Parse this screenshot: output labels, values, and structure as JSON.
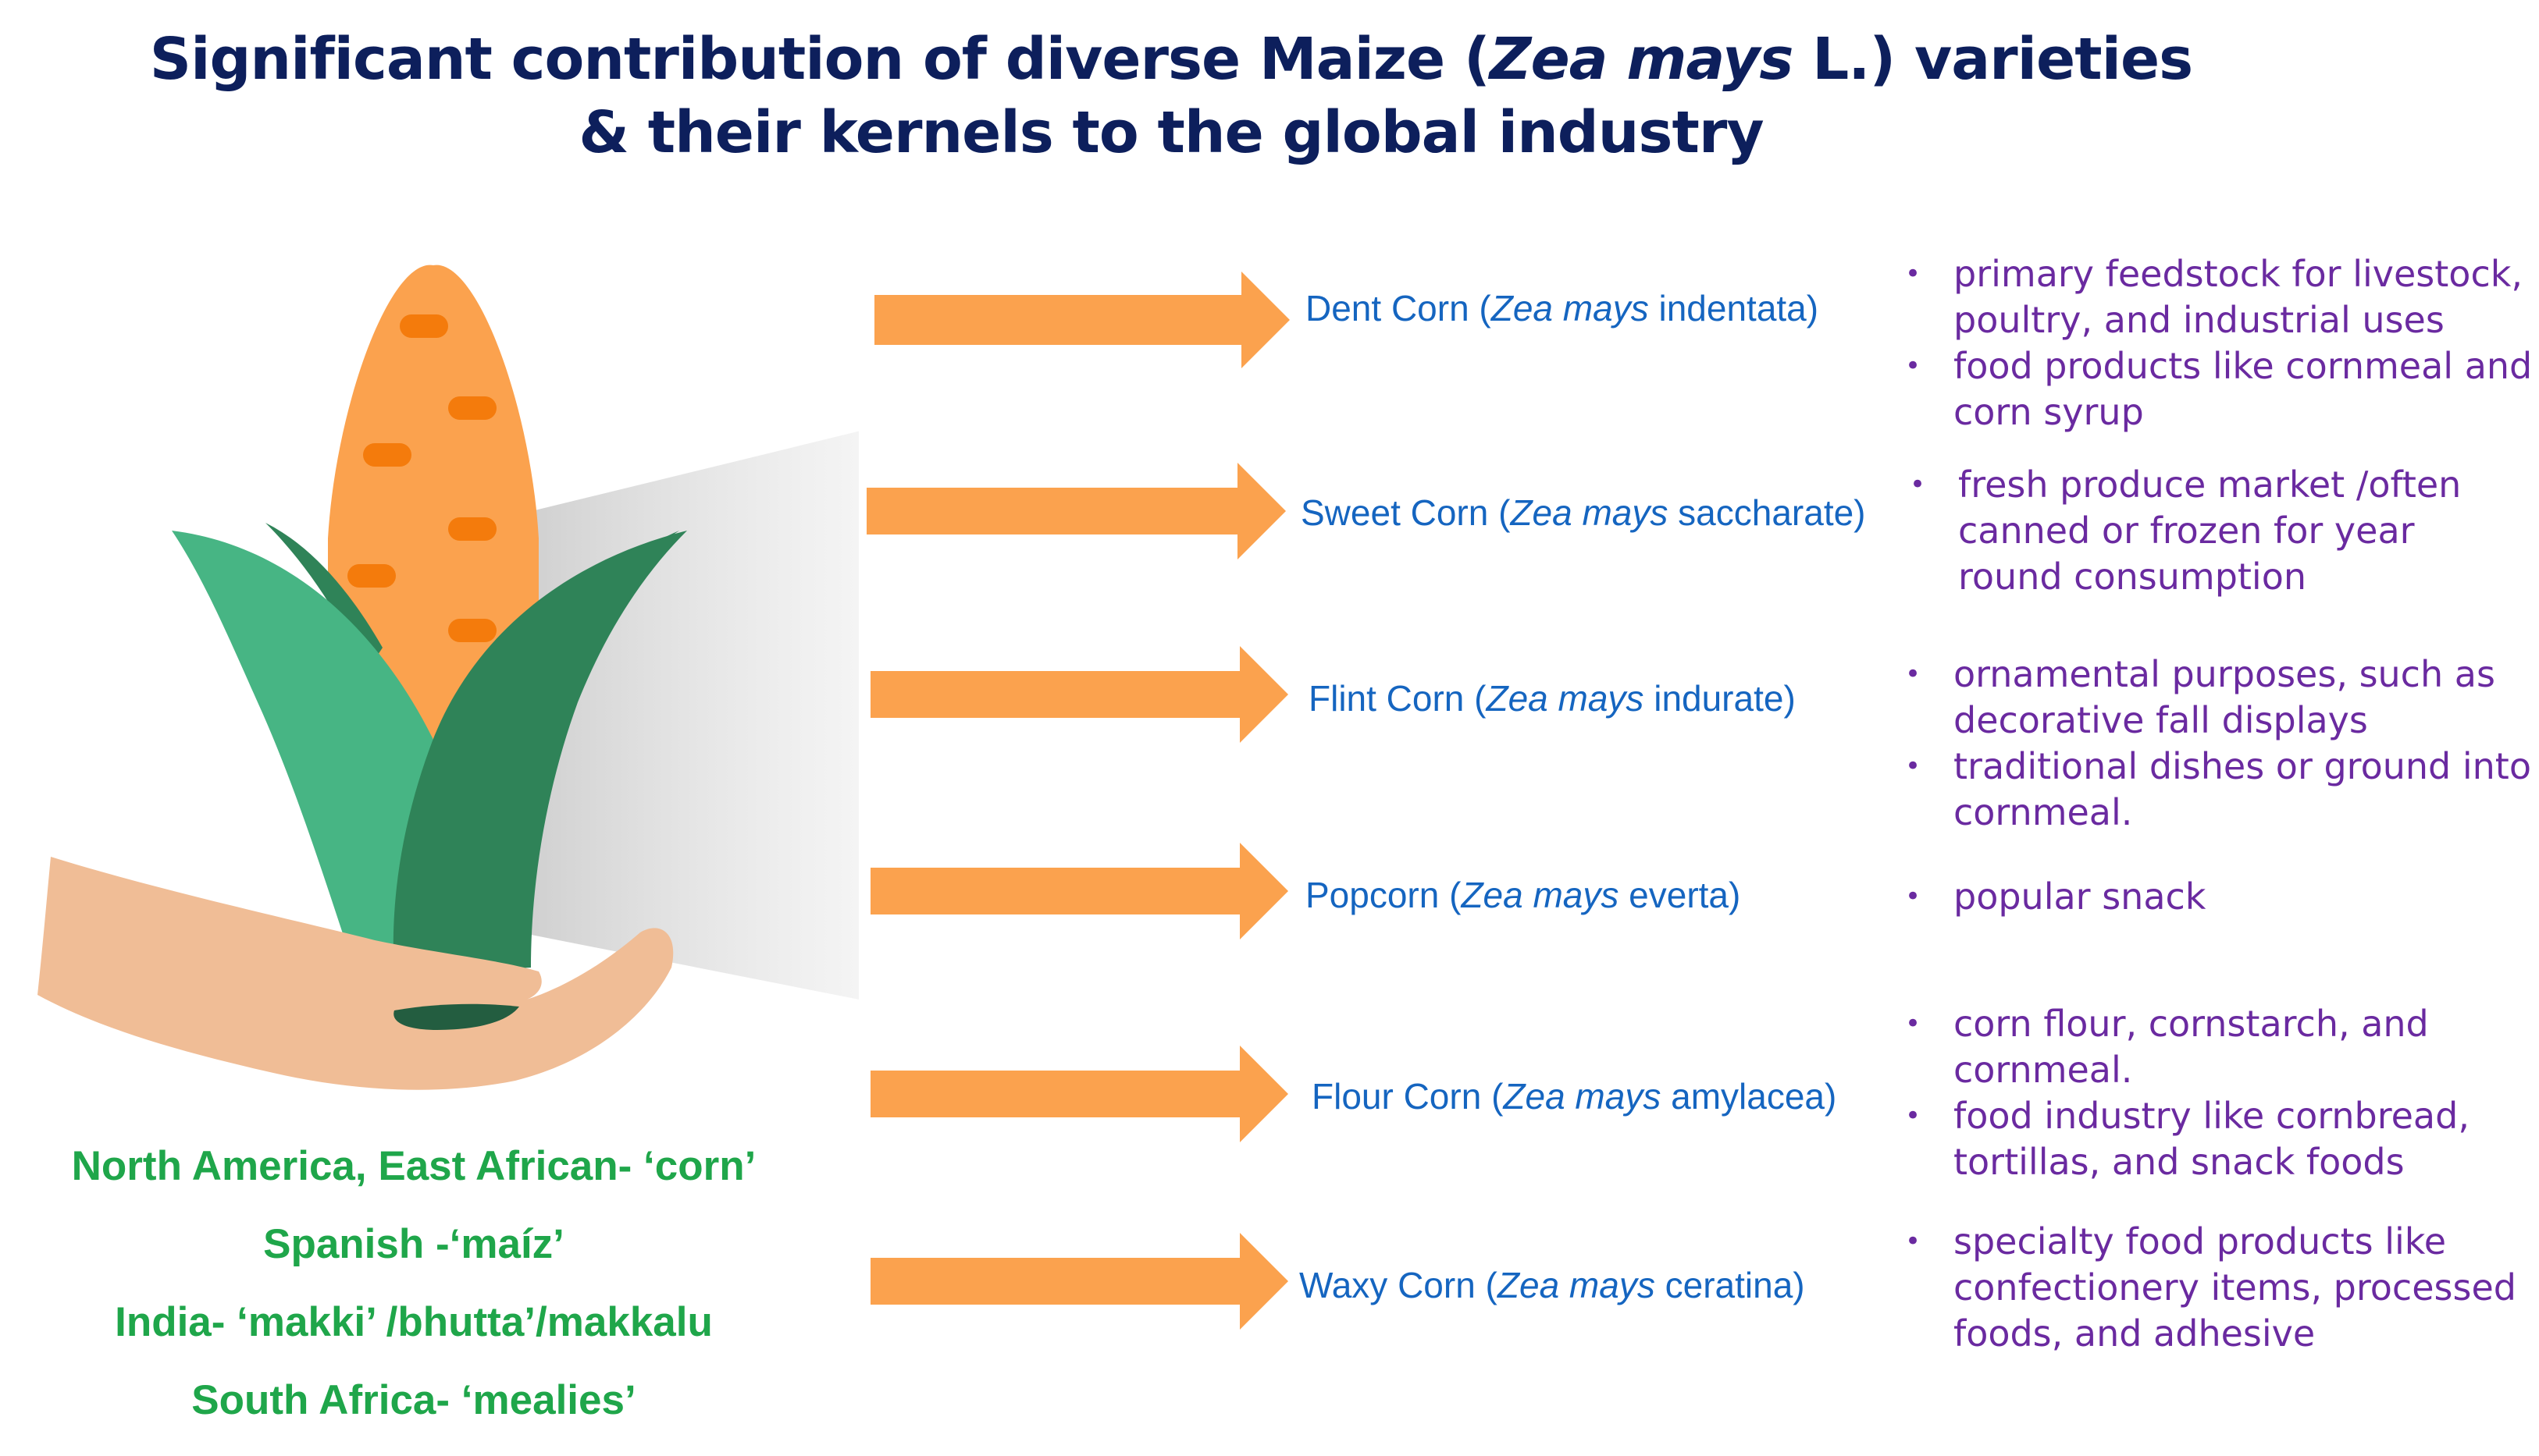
{
  "title": {
    "line1_before": "Significant contribution of diverse Maize (",
    "line1_italic": "Zea mays",
    "line1_after": " L.) varieties",
    "line2": "& their kernels to the global industry"
  },
  "colors": {
    "title": "#0d1f5c",
    "variety_text": "#1565c0",
    "uses_text": "#6a2aa0",
    "names_text": "#1fa64a",
    "arrow": "#fba24e",
    "cob": "#fba24e",
    "kernel": "#f47b0c",
    "husk_light": "#47b584",
    "husk_dark": "#2f8358",
    "hand": "#f0bd96"
  },
  "varieties": [
    {
      "prefix": "Dent Corn (",
      "italic": "Zea mays",
      "suffix": " indentata)",
      "uses": [
        "primary feedstock for livestock, poultry, and industrial uses",
        "food products like cornmeal and corn syrup"
      ]
    },
    {
      "prefix": "Sweet Corn (",
      "italic": "Zea mays",
      "suffix": " saccharate)",
      "uses": [
        "fresh produce market /often canned or frozen for year round consumption"
      ]
    },
    {
      "prefix": "Flint Corn (",
      "italic": "Zea mays",
      "suffix": " indurate)",
      "uses": [
        "ornamental purposes, such as decorative fall displays",
        "traditional dishes or ground into cornmeal."
      ]
    },
    {
      "prefix": "Popcorn (",
      "italic": "Zea mays",
      "suffix": " everta)",
      "uses": [
        "popular snack"
      ]
    },
    {
      "prefix": "Flour Corn (",
      "italic": "Zea mays",
      "suffix": " amylacea)",
      "uses": [
        "corn flour, cornstarch, and cornmeal.",
        "food industry like cornbread, tortillas, and snack foods"
      ]
    },
    {
      "prefix": "Waxy Corn (",
      "italic": "Zea mays",
      "suffix": " ceratina)",
      "uses": [
        "specialty food products like confectionery items, processed foods, and adhesive"
      ]
    }
  ],
  "regional_names": [
    "North America, East African- ‘corn’",
    "Spanish -‘maíz’",
    "India- ‘makki’ /bhutta’/makkalu",
    "South Africa- ‘mealies’"
  ],
  "icons": [
    "corn-cob-icon",
    "hand-icon",
    "arrow-right-icon"
  ]
}
